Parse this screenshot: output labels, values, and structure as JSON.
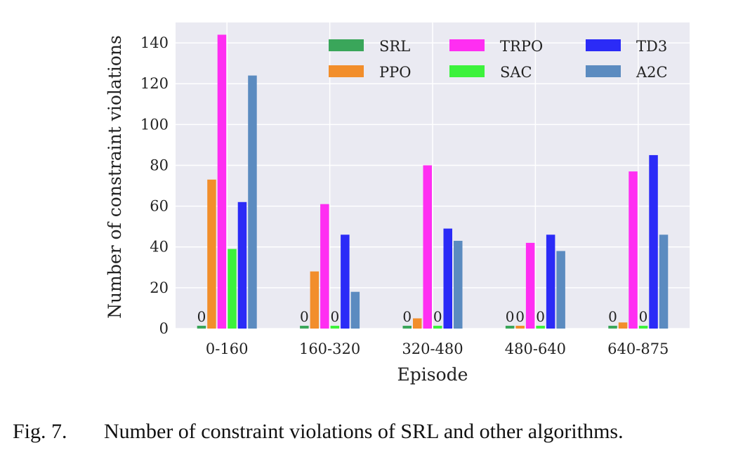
{
  "chart_data": {
    "type": "bar",
    "title": "",
    "xlabel": "Episode",
    "ylabel": "Number of constraint violations",
    "ylim": [
      0,
      150
    ],
    "yticks": [
      0,
      20,
      40,
      60,
      80,
      100,
      120,
      140
    ],
    "grid": true,
    "legend_position": "top-right",
    "categories": [
      "0-160",
      "160-320",
      "320-480",
      "480-640",
      "640-875"
    ],
    "series": [
      {
        "name": "SRL",
        "color": "#3aa65a",
        "values": [
          0,
          0,
          0,
          0,
          0
        ]
      },
      {
        "name": "PPO",
        "color": "#f28e2b",
        "values": [
          73,
          28,
          5,
          0,
          3
        ]
      },
      {
        "name": "TRPO",
        "color": "#ff2ef2",
        "values": [
          144,
          61,
          80,
          42,
          77
        ]
      },
      {
        "name": "SAC",
        "color": "#3cf23c",
        "values": [
          39,
          0,
          0,
          0,
          0
        ]
      },
      {
        "name": "TD3",
        "color": "#2b2bf7",
        "values": [
          62,
          46,
          49,
          46,
          85
        ]
      },
      {
        "name": "A2C",
        "color": "#5b8bc0",
        "values": [
          124,
          18,
          43,
          38,
          46
        ]
      }
    ],
    "zero_labels": [
      {
        "category": "0-160",
        "series": "SRL",
        "text": "0"
      },
      {
        "category": "160-320",
        "series": "SRL",
        "text": "0"
      },
      {
        "category": "160-320",
        "series": "SAC",
        "text": "0"
      },
      {
        "category": "320-480",
        "series": "SRL",
        "text": "0"
      },
      {
        "category": "320-480",
        "series": "SAC",
        "text": "0"
      },
      {
        "category": "480-640",
        "series": "SRL",
        "text": "0"
      },
      {
        "category": "480-640",
        "series": "PPO",
        "text": "0"
      },
      {
        "category": "480-640",
        "series": "SAC",
        "text": "0"
      },
      {
        "category": "640-875",
        "series": "SRL",
        "text": "0"
      },
      {
        "category": "640-875",
        "series": "SAC",
        "text": "0"
      }
    ]
  },
  "caption": {
    "label": "Fig. 7.",
    "text": "Number of constraint violations of SRL and other algorithms."
  }
}
